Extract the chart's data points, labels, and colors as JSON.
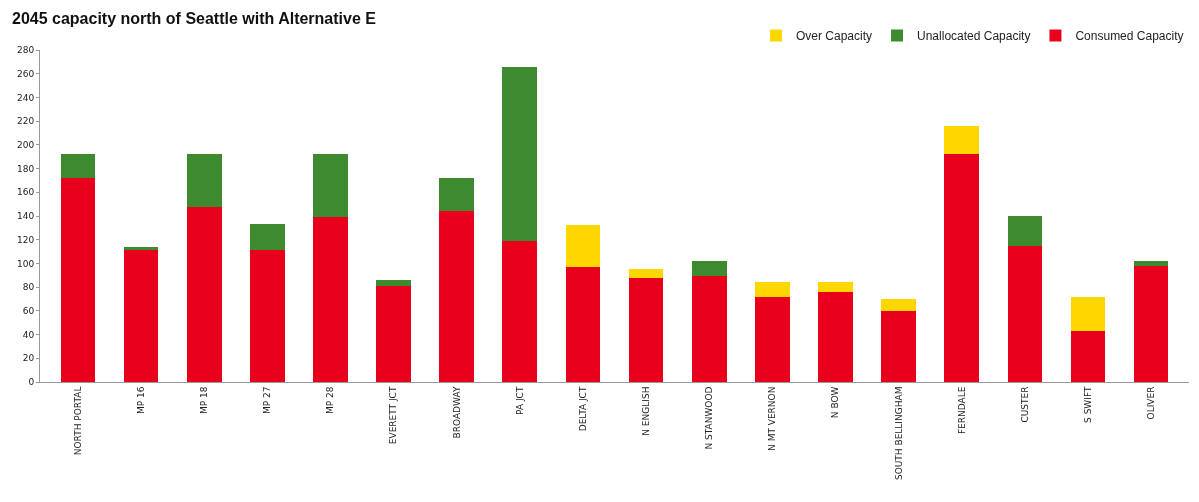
{
  "chart_data": {
    "type": "bar",
    "stacked": true,
    "title": "2045 capacity north of Seattle with Alternative E",
    "categories": [
      "NORTH PORTAL",
      "MP 16",
      "MP 18",
      "MP 27",
      "MP 28",
      "EVERETT JCT",
      "BROADWAY",
      "PA JCT",
      "DELTA JCT",
      "N ENGLISH",
      "N STANWOOD",
      "N MT VERNON",
      "N BOW",
      "SOUTH BELLINGHAM",
      "FERNDALE",
      "CUSTER",
      "S SWIFT",
      "OLIVER"
    ],
    "series": [
      {
        "name": "Consumed Capacity",
        "color": "#e8001c",
        "values": [
          172,
          111,
          148,
          111,
          139,
          81,
          144,
          119,
          97,
          88,
          89,
          72,
          76,
          60,
          192,
          115,
          43,
          98
        ]
      },
      {
        "name": "Unallocated Capacity",
        "color": "#3e8a2e",
        "values": [
          20,
          3,
          44,
          22,
          53,
          5,
          28,
          147,
          null,
          null,
          13,
          null,
          null,
          null,
          null,
          25,
          null,
          4
        ]
      },
      {
        "name": "Over Capacity",
        "color": "#ffd700",
        "values": [
          null,
          null,
          null,
          null,
          null,
          null,
          null,
          null,
          35,
          7,
          null,
          12,
          8,
          10,
          24,
          null,
          29,
          null
        ]
      }
    ],
    "ylim": [
      0,
      280
    ],
    "yticks": [
      0,
      20,
      40,
      60,
      80,
      100,
      120,
      140,
      160,
      180,
      200,
      220,
      240,
      260,
      280
    ],
    "legend": "top right"
  }
}
